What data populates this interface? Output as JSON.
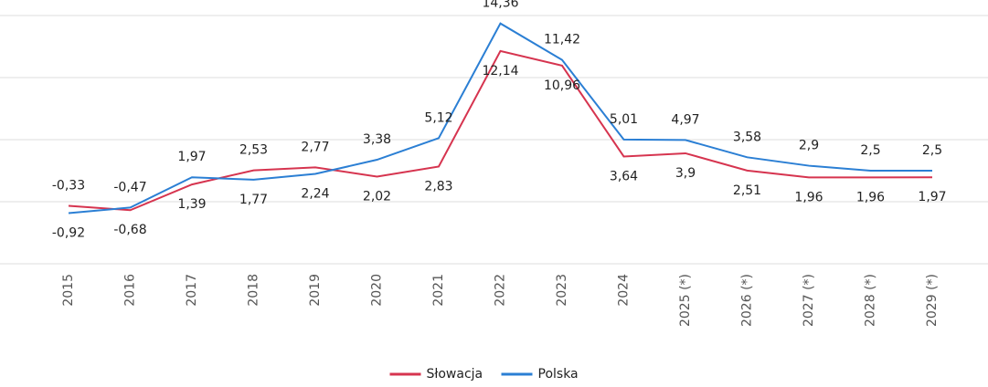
{
  "chart_data": {
    "type": "line",
    "categories": [
      "2015",
      "2016",
      "2017",
      "2018",
      "2019",
      "2020",
      "2021",
      "2022",
      "2023",
      "2024",
      "2025 (*)",
      "2026 (*)",
      "2027 (*)",
      "2028 (*)",
      "2029 (*)"
    ],
    "series": [
      {
        "name": "Słowacja",
        "color": "#d6344f",
        "values": [
          -0.33,
          -0.68,
          1.39,
          2.53,
          2.77,
          2.02,
          2.83,
          12.14,
          10.96,
          3.64,
          3.9,
          2.51,
          1.96,
          1.96,
          1.97
        ],
        "value_labels": [
          "-0,33",
          "-0,68",
          "1,39",
          "2,53",
          "2,77",
          "2,02",
          "2,83",
          "12,14",
          "10,96",
          "3,64",
          "3,9",
          "2,51",
          "1,96",
          "1,96",
          "1,97"
        ]
      },
      {
        "name": "Polska",
        "color": "#2b7fd4",
        "values": [
          -0.92,
          -0.47,
          1.97,
          1.77,
          2.24,
          3.38,
          5.12,
          14.36,
          11.42,
          5.01,
          4.97,
          3.58,
          2.9,
          2.5,
          2.5
        ],
        "value_labels": [
          "-0,92",
          "-0,47",
          "1,97",
          "1,77",
          "2,24",
          "3,38",
          "5,12",
          "14,36",
          "11,42",
          "5,01",
          "4,97",
          "3,58",
          "2,9",
          "2,5",
          "2,5"
        ]
      }
    ],
    "ylim": [
      -5,
      15
    ],
    "yticks": [
      -5,
      0,
      5,
      10,
      15
    ],
    "grid": true,
    "legend": "bottom"
  }
}
